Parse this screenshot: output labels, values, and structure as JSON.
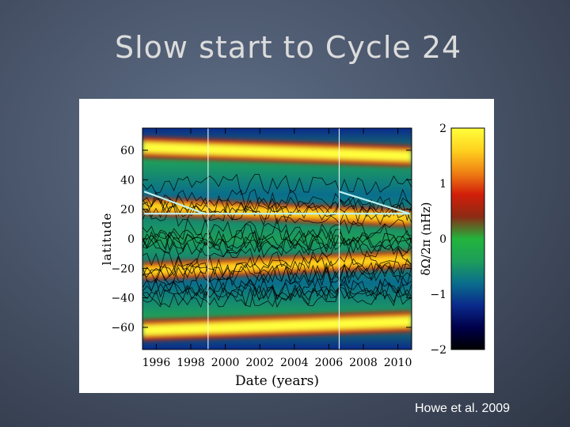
{
  "slide": {
    "title": "Slow start to Cycle 24",
    "citation": "Howe et al. 2009"
  },
  "colors": {
    "background": "#4a566b",
    "title_text": "#dcdcdc",
    "guide_lines": "#bff2ee",
    "contour_lines": "#000000"
  },
  "chart_data": {
    "type": "heatmap",
    "xlabel": "Date (years)",
    "ylabel": "latitude",
    "xlim": [
      1995.2,
      2010.8
    ],
    "ylim": [
      -75,
      75
    ],
    "x_ticks": [
      1996,
      1998,
      2000,
      2002,
      2004,
      2006,
      2008,
      2010
    ],
    "y_ticks": [
      60,
      40,
      20,
      0,
      -20,
      -40,
      -60
    ],
    "x_tick_labels": [
      "1996",
      "1998",
      "2000",
      "2002",
      "2004",
      "2006",
      "2008",
      "2010"
    ],
    "y_tick_labels": [
      "60",
      "40",
      "20",
      "0",
      "−20",
      "−40",
      "−60"
    ],
    "grid": false,
    "vertical_markers": [
      1999.0,
      2006.6
    ],
    "guide_lines": [
      {
        "from": [
          1995.3,
          32
        ],
        "to": [
          1998.8,
          17
        ]
      },
      {
        "from": [
          1995.3,
          17
        ],
        "to": [
          2010.7,
          17
        ]
      },
      {
        "from": [
          2006.6,
          32
        ],
        "to": [
          2010.7,
          17
        ]
      }
    ],
    "colorbar": {
      "label": "δΩ/2π (nHz)",
      "range": [
        -2,
        2
      ],
      "ticks": [
        2,
        1,
        0,
        -1,
        -2
      ],
      "tick_labels": [
        "2",
        "1",
        "0",
        "−1",
        "−2"
      ],
      "colors": [
        "#000000",
        "#00004a",
        "#0a2a8c",
        "#0a6e8c",
        "#1e9e5a",
        "#22b43c",
        "#8c2a14",
        "#d21e0a",
        "#f08214",
        "#ffd21e",
        "#ffff3c"
      ]
    },
    "bands": [
      {
        "name": "",
        "center_at_xlim0": 22,
        "center_at_xlim1": 14,
        "width": 12,
        "value": 1.5
      },
      {
        "name": "",
        "center_at_xlim0": -22,
        "center_at_xlim1": -14,
        "width": 12,
        "value": 1.5
      },
      {
        "name": "",
        "center_at_xlim0": 62,
        "center_at_xlim1": 56,
        "width": 14,
        "value": 1.8
      },
      {
        "name": "",
        "center_at_xlim0": -62,
        "center_at_xlim1": -56,
        "width": 14,
        "value": 1.8
      }
    ]
  }
}
